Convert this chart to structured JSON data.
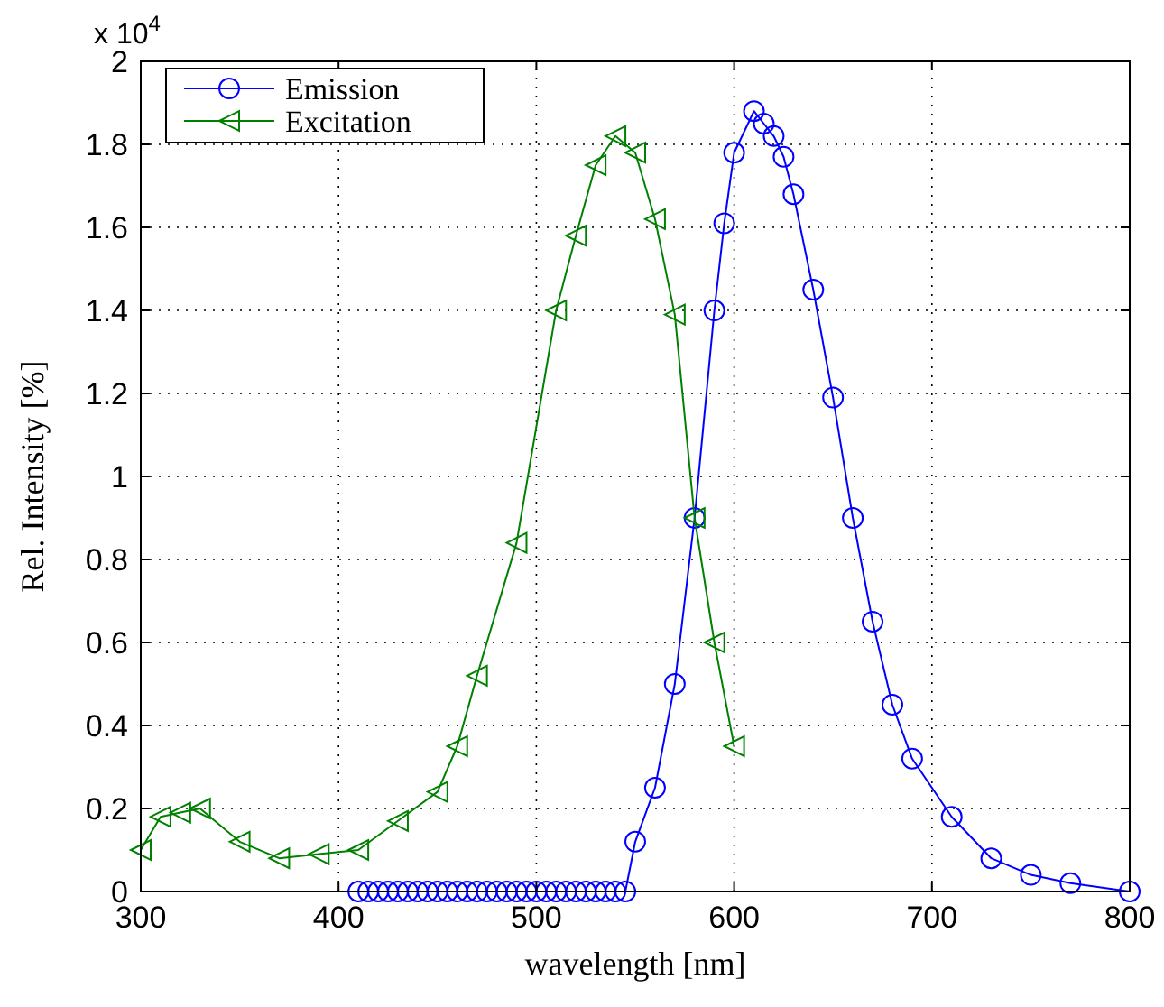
{
  "chart_data": {
    "type": "line",
    "xlabel": "wavelength [nm]",
    "ylabel": "Rel. Intensity [%]",
    "annotations": [
      "x 10$^{4}$"
    ],
    "xlim": [
      300,
      800
    ],
    "xticks": [
      300,
      400,
      500,
      600,
      700,
      800
    ],
    "ylim": [
      0,
      2
    ],
    "yticks": [
      0,
      0.2,
      0.4,
      0.6,
      0.8,
      1,
      1.2,
      1.4,
      1.6,
      1.8,
      2
    ],
    "grid": true,
    "legend": "top left",
    "series": [
      {
        "name": "Emission",
        "color": "#0000ff",
        "marker": "circle",
        "x": [
          410,
          415,
          420,
          425,
          430,
          435,
          440,
          445,
          450,
          455,
          460,
          465,
          470,
          475,
          480,
          485,
          490,
          495,
          500,
          505,
          510,
          515,
          520,
          525,
          530,
          535,
          540,
          545,
          550,
          560,
          570,
          580,
          590,
          595,
          600,
          610,
          615,
          620,
          625,
          630,
          640,
          650,
          660,
          670,
          680,
          690,
          710,
          730,
          750,
          770,
          800
        ],
        "values": [
          0,
          0,
          0,
          0,
          0,
          0,
          0,
          0,
          0,
          0,
          0,
          0,
          0,
          0,
          0,
          0,
          0,
          0,
          0,
          0,
          0,
          0,
          0,
          0,
          0,
          0,
          0,
          0,
          0.12,
          0.25,
          0.5,
          0.9,
          1.4,
          1.61,
          1.78,
          1.88,
          1.85,
          1.82,
          1.77,
          1.68,
          1.45,
          1.19,
          0.9,
          0.65,
          0.45,
          0.32,
          0.18,
          0.08,
          0.04,
          0.02,
          0
        ]
      },
      {
        "name": "Excitation",
        "color": "#008000",
        "marker": "triangle",
        "x": [
          300,
          310,
          320,
          330,
          350,
          370,
          390,
          410,
          430,
          450,
          460,
          470,
          490,
          510,
          520,
          530,
          540,
          550,
          560,
          570,
          580,
          590,
          600
        ],
        "values": [
          0.1,
          0.18,
          0.19,
          0.2,
          0.12,
          0.08,
          0.09,
          0.1,
          0.17,
          0.24,
          0.35,
          0.52,
          0.84,
          1.4,
          1.58,
          1.75,
          1.82,
          1.78,
          1.62,
          1.39,
          0.9,
          0.6,
          0.35
        ]
      }
    ]
  }
}
